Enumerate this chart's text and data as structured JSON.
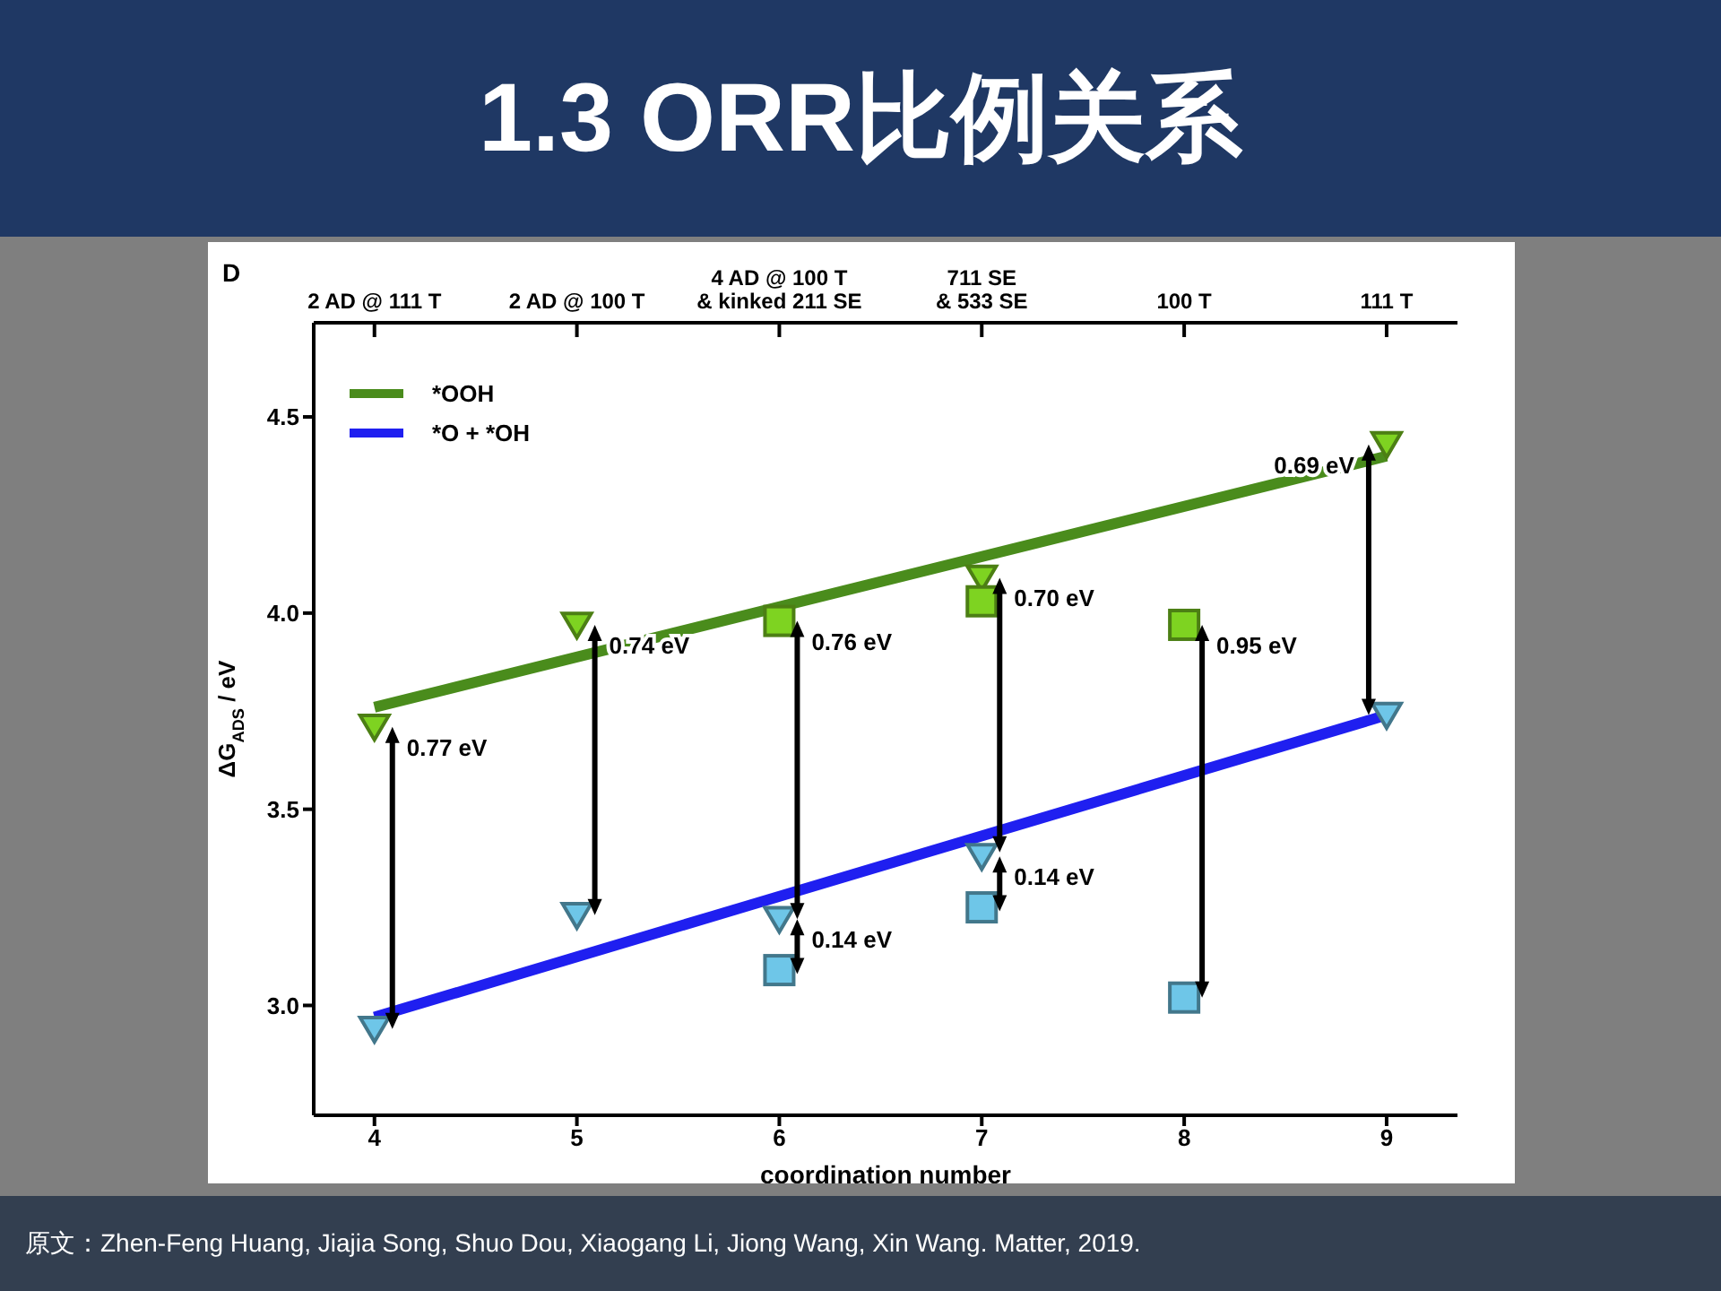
{
  "chart_data": {
    "type": "scatter",
    "title": "1.3 ORR比例关系",
    "xlabel": "coordination number",
    "ylabel": "ΔG$_{ADS}$ / eV",
    "xlim": [
      3.7,
      9.35
    ],
    "xticks": [
      4,
      5,
      6,
      7,
      8,
      9
    ],
    "ylim": [
      2.72,
      4.74
    ],
    "yticks": [
      {
        "value": 3.0,
        "label": "3.0"
      },
      {
        "value": 3.5,
        "label": "3.5"
      },
      {
        "value": 4.0,
        "label": "4.0"
      },
      {
        "value": 4.5,
        "label": "4.5"
      }
    ],
    "legend": "top left",
    "grid": false,
    "series": [
      {
        "name": "*OOH",
        "type": "line",
        "color": "#4a8c1c",
        "x": [
          4,
          9
        ],
        "values": [
          3.76,
          4.4
        ]
      },
      {
        "name": "*O + *OH",
        "type": "line",
        "color": "#1f1ff0",
        "x": [
          4,
          9
        ],
        "values": [
          2.97,
          3.74
        ]
      },
      {
        "marker": "triangle",
        "color": "#7ed321",
        "x": [
          4,
          5,
          6,
          7,
          9
        ],
        "values": [
          3.71,
          3.97,
          null,
          4.09,
          4.43
        ]
      },
      {
        "marker": "square",
        "color": "#7ed321",
        "x": [
          6,
          7,
          8
        ],
        "values": [
          3.98,
          4.03,
          3.97
        ]
      },
      {
        "marker": "triangle",
        "color": "#6ec6e8",
        "x": [
          4,
          5,
          6,
          7,
          9
        ],
        "values": [
          2.94,
          3.23,
          3.22,
          3.38,
          3.74
        ]
      },
      {
        "marker": "square",
        "color": "#6ec6e8",
        "x": [
          6,
          7,
          8
        ],
        "values": [
          3.09,
          3.25,
          3.02
        ]
      }
    ],
    "annotations": [
      "D",
      "原文：Zhen-Feng Huang, Jiajia Song, Shuo Dou, Xiaogang Li, Jiong Wang, Xin Wang. Matter, 2019.",
      {
        "text": "2 AD @ 111 T",
        "x": 4
      },
      {
        "text": "2 AD @ 100 T",
        "x": 5
      },
      {
        "text": "4 AD @ 100 T\n& kinked 211 SE",
        "x": 6
      },
      {
        "text": "711 SE\n& 533 SE",
        "x": 7
      },
      {
        "text": "100 T",
        "x": 8
      },
      {
        "text": "111 T",
        "x": 9
      },
      {
        "text": "0.77 eV",
        "x": 4,
        "y": 3.71
      },
      {
        "text": "0.74 eV",
        "x": 5,
        "y": 3.97
      },
      {
        "text": "0.76 eV",
        "x": 6,
        "y": 3.98
      },
      {
        "text": "0.14 eV",
        "x": 6,
        "y": 3.22
      },
      {
        "text": "0.70 eV",
        "x": 7,
        "y": 4.09
      },
      {
        "text": "0.14 eV",
        "x": 7,
        "y": 3.38
      },
      {
        "text": "0.95 eV",
        "x": 8,
        "y": 3.97
      },
      {
        "text": "0.69 eV",
        "x": 9,
        "y": 4.43
      }
    ]
  }
}
